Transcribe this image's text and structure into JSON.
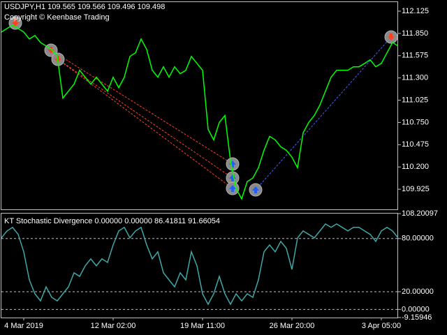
{
  "chart_data": [
    {
      "type": "line",
      "title": "USDJPY,H1  109.565 109.566 109.496 109.498",
      "subtitle": "Copyright © Keenbase Trading",
      "ylim": [
        109.676,
        112.237
      ],
      "yticks": [
        112.125,
        {
          "value": 111.85,
          "label": "111.850"
        },
        111.575,
        {
          "value": 111.3,
          "label": "111.300"
        },
        111.025,
        {
          "value": 110.75,
          "label": "110.750"
        },
        110.475,
        {
          "value": 110.2,
          "label": "110.200"
        },
        109.925
      ],
      "grid": false,
      "series": [
        {
          "name": "USDJPY",
          "color": "#00ff00",
          "values": [
            111.867,
            111.91,
            111.953,
            111.91,
            111.867,
            111.781,
            111.824,
            111.738,
            111.695,
            111.652,
            111.566,
            111.051,
            111.137,
            111.223,
            111.395,
            111.309,
            111.223,
            111.309,
            111.223,
            111.137,
            111.309,
            111.18,
            111.309,
            111.566,
            111.609,
            111.781,
            111.652,
            111.395,
            111.309,
            111.438,
            111.309,
            111.438,
            111.352,
            111.395,
            111.566,
            111.48,
            111.395,
            110.664,
            110.535,
            110.75,
            110.836,
            110.277,
            109.934,
            109.805,
            110.02,
            110.063,
            110.191,
            110.406,
            110.578,
            110.535,
            110.449,
            110.406,
            110.32,
            110.191,
            110.621,
            110.75,
            110.836,
            110.965,
            111.137,
            111.309,
            111.395,
            111.395,
            111.395,
            111.438,
            111.438,
            111.48,
            111.523,
            111.438,
            111.48,
            111.609,
            111.738,
            111.695
          ]
        }
      ]
    },
    {
      "type": "line",
      "title": "KT Stochastic Divergence 0.00000 0.00000 86.41811 91.66054",
      "ylim": [
        -9.15946,
        108.20097
      ],
      "yticks": [
        108.20097,
        {
          "value": 80,
          "label": "80.00000"
        },
        {
          "value": 20,
          "label": "20.00000"
        },
        {
          "value": 0,
          "label": "0.00000"
        },
        -9.15946
      ],
      "grid": true,
      "categories": [
        null,
        null,
        null,
        null,
        "4 Mar 2019",
        null,
        null,
        null,
        null,
        null,
        null,
        null,
        null,
        null,
        null,
        null,
        null,
        null,
        null,
        null,
        "12 Mar 02:00",
        null,
        null,
        null,
        null,
        null,
        null,
        null,
        null,
        null,
        null,
        null,
        null,
        null,
        null,
        null,
        "19 Mar 11:00",
        null,
        null,
        null,
        null,
        null,
        null,
        null,
        null,
        null,
        null,
        null,
        null,
        null,
        null,
        null,
        "26 Mar 20:00",
        null,
        null,
        null,
        null,
        null,
        null,
        null,
        null,
        null,
        null,
        null,
        null,
        null,
        null,
        null,
        "3 Apr 05:00",
        null,
        null,
        null
      ],
      "series": [
        {
          "name": "Stochastic",
          "color": "#3fa8a8",
          "values": [
            80.7,
            88.6,
            92.6,
            84.7,
            65.0,
            33.4,
            17.6,
            9.7,
            25.5,
            13.7,
            9.7,
            17.6,
            25.5,
            41.3,
            37.3,
            49.2,
            57.1,
            49.2,
            57.1,
            53.1,
            72.8,
            88.6,
            92.6,
            80.7,
            88.6,
            92.6,
            72.8,
            57.1,
            65.0,
            41.3,
            33.4,
            25.5,
            41.3,
            33.4,
            65.0,
            49.2,
            17.6,
            5.8,
            17.6,
            37.3,
            17.6,
            5.8,
            17.6,
            9.7,
            17.6,
            13.7,
            33.4,
            65.0,
            72.8,
            65.0,
            76.8,
            68.9,
            45.2,
            80.7,
            88.6,
            84.7,
            80.7,
            88.6,
            96.5,
            92.6,
            96.5,
            92.6,
            88.6,
            92.6,
            92.6,
            88.6,
            84.7,
            76.8,
            88.6,
            92.6,
            88.6,
            80.7
          ]
        }
      ]
    }
  ]
}
